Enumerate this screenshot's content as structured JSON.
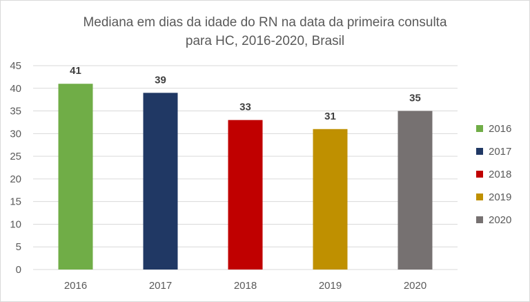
{
  "chart_data": {
    "type": "bar",
    "title_lines": [
      "Mediana em dias da idade do RN na data da primeira consulta",
      "para HC, 2016-2020, Brasil"
    ],
    "categories": [
      "2016",
      "2017",
      "2018",
      "2019",
      "2020"
    ],
    "values": [
      41,
      39,
      33,
      31,
      35
    ],
    "colors": [
      "#70ad47",
      "#203864",
      "#c00000",
      "#bf9000",
      "#767171"
    ],
    "ylim": [
      0,
      45
    ],
    "yticks": [
      0,
      5,
      10,
      15,
      20,
      25,
      30,
      35,
      40,
      45
    ],
    "xlabel": "",
    "ylabel": "",
    "grid": true,
    "legend_position": "right",
    "legend": [
      "2016",
      "2017",
      "2018",
      "2019",
      "2020"
    ]
  }
}
